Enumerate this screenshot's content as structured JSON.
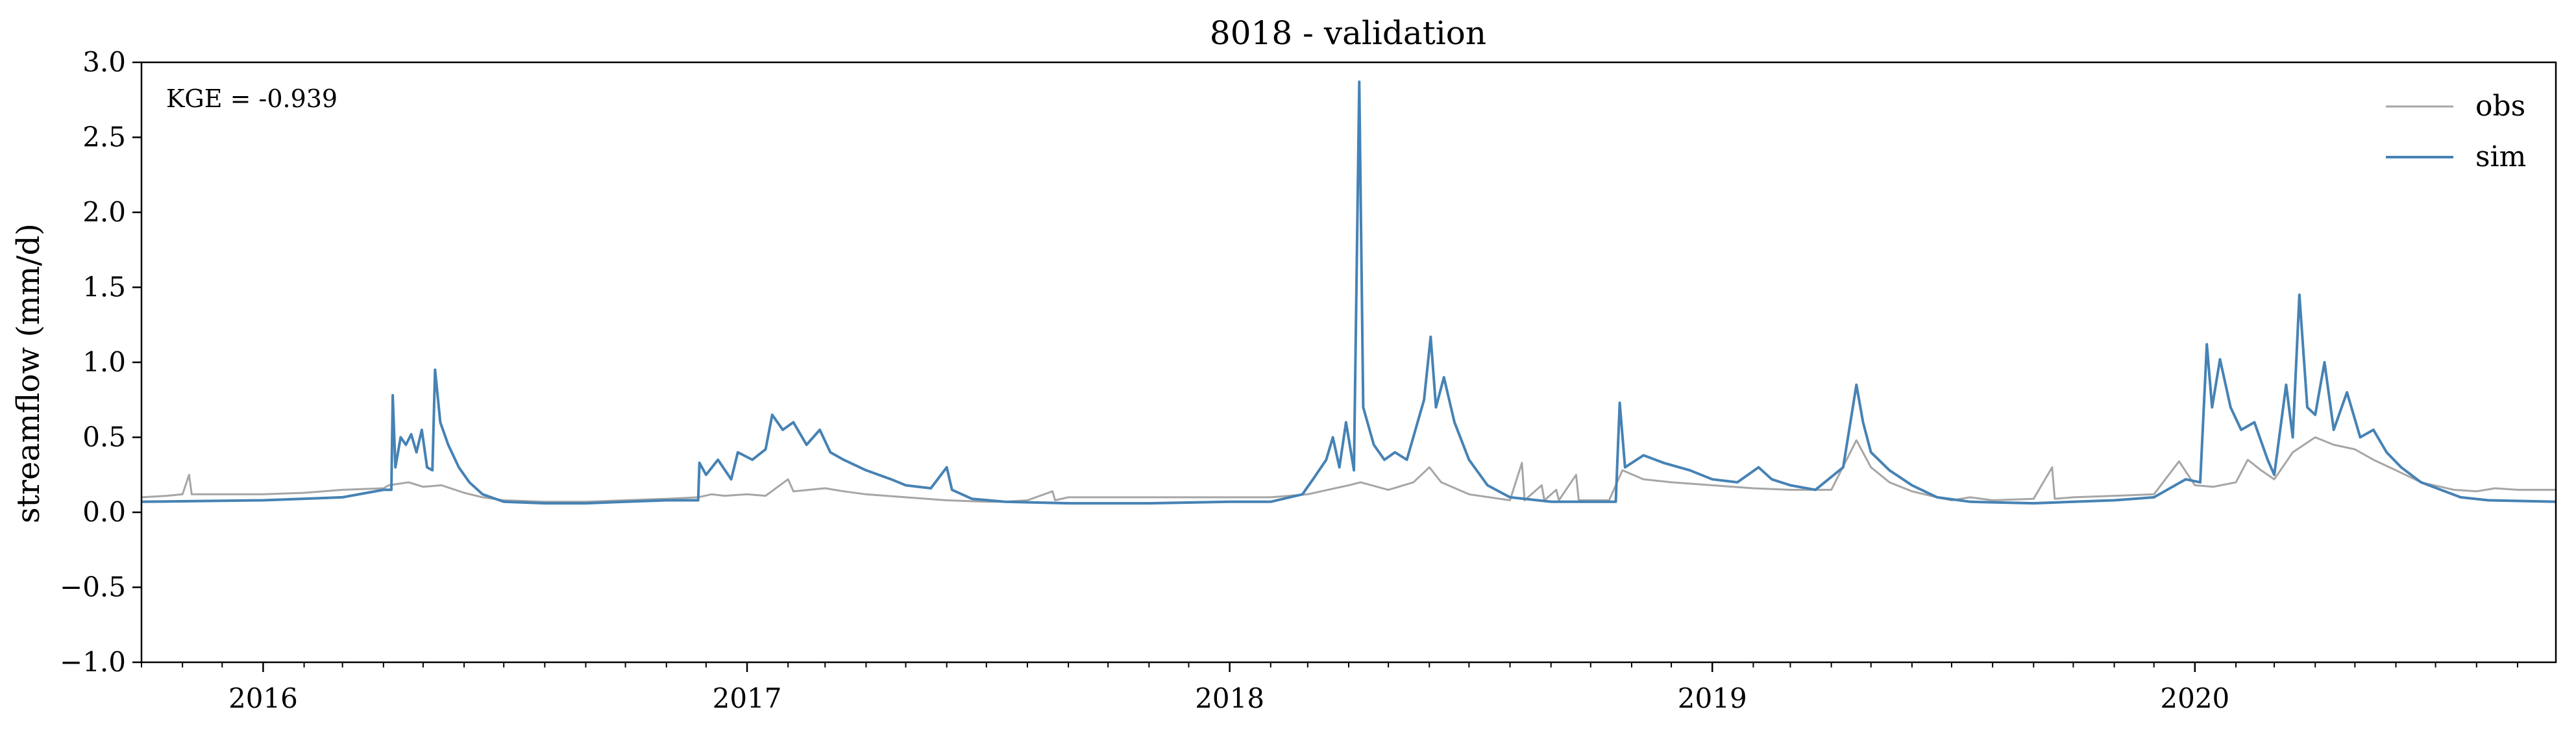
{
  "chart_data": {
    "type": "line",
    "title": "8018 - validation",
    "xlabel": "",
    "ylabel": "streamflow (mm/d)",
    "annotation": "KGE = -0.939",
    "xlim": [
      "2015-10-01",
      "2020-09-30"
    ],
    "ylim": [
      -1.0,
      3.0
    ],
    "yticks": [
      -1.0,
      -0.5,
      0.0,
      0.5,
      1.0,
      1.5,
      2.0,
      2.5,
      3.0
    ],
    "ytick_labels": [
      "−1.0",
      "−0.5",
      "0.0",
      "0.5",
      "1.0",
      "1.5",
      "2.0",
      "2.5",
      "3.0"
    ],
    "xticks": [
      "2016-01-01",
      "2017-01-01",
      "2018-01-01",
      "2019-01-01",
      "2020-01-01"
    ],
    "xtick_labels": [
      "2016",
      "2017",
      "2018",
      "2019",
      "2020"
    ],
    "grid": false,
    "legend_position": "top-right",
    "series": [
      {
        "name": "obs",
        "color": "#a6a6a6",
        "points": [
          [
            "2015-10-01",
            0.1
          ],
          [
            "2015-10-20",
            0.11
          ],
          [
            "2015-11-01",
            0.12
          ],
          [
            "2015-11-06",
            0.25
          ],
          [
            "2015-11-08",
            0.12
          ],
          [
            "2015-12-01",
            0.12
          ],
          [
            "2016-01-01",
            0.12
          ],
          [
            "2016-02-01",
            0.13
          ],
          [
            "2016-03-01",
            0.15
          ],
          [
            "2016-04-01",
            0.16
          ],
          [
            "2016-04-05",
            0.18
          ],
          [
            "2016-04-20",
            0.2
          ],
          [
            "2016-05-01",
            0.17
          ],
          [
            "2016-05-15",
            0.18
          ],
          [
            "2016-06-01",
            0.13
          ],
          [
            "2016-06-15",
            0.1
          ],
          [
            "2016-07-01",
            0.08
          ],
          [
            "2016-08-01",
            0.07
          ],
          [
            "2016-09-01",
            0.07
          ],
          [
            "2016-10-01",
            0.08
          ],
          [
            "2016-11-01",
            0.09
          ],
          [
            "2016-11-25",
            0.1
          ],
          [
            "2016-12-05",
            0.12
          ],
          [
            "2016-12-15",
            0.11
          ],
          [
            "2017-01-01",
            0.12
          ],
          [
            "2017-01-15",
            0.11
          ],
          [
            "2017-02-01",
            0.22
          ],
          [
            "2017-02-05",
            0.14
          ],
          [
            "2017-03-01",
            0.16
          ],
          [
            "2017-03-15",
            0.14
          ],
          [
            "2017-04-01",
            0.12
          ],
          [
            "2017-05-01",
            0.1
          ],
          [
            "2017-06-01",
            0.08
          ],
          [
            "2017-07-01",
            0.07
          ],
          [
            "2017-07-15",
            0.07
          ],
          [
            "2017-08-01",
            0.08
          ],
          [
            "2017-08-20",
            0.14
          ],
          [
            "2017-08-22",
            0.08
          ],
          [
            "2017-09-01",
            0.1
          ],
          [
            "2017-10-01",
            0.1
          ],
          [
            "2017-11-01",
            0.1
          ],
          [
            "2017-12-01",
            0.1
          ],
          [
            "2018-01-01",
            0.1
          ],
          [
            "2018-02-01",
            0.1
          ],
          [
            "2018-03-01",
            0.12
          ],
          [
            "2018-04-01",
            0.18
          ],
          [
            "2018-04-10",
            0.2
          ],
          [
            "2018-05-01",
            0.15
          ],
          [
            "2018-05-20",
            0.2
          ],
          [
            "2018-06-01",
            0.3
          ],
          [
            "2018-06-10",
            0.2
          ],
          [
            "2018-07-01",
            0.12
          ],
          [
            "2018-08-01",
            0.08
          ],
          [
            "2018-08-10",
            0.33
          ],
          [
            "2018-08-12",
            0.08
          ],
          [
            "2018-08-25",
            0.18
          ],
          [
            "2018-08-27",
            0.08
          ],
          [
            "2018-09-05",
            0.15
          ],
          [
            "2018-09-07",
            0.08
          ],
          [
            "2018-09-20",
            0.25
          ],
          [
            "2018-09-22",
            0.08
          ],
          [
            "2018-10-15",
            0.08
          ],
          [
            "2018-10-25",
            0.28
          ],
          [
            "2018-11-10",
            0.22
          ],
          [
            "2018-12-01",
            0.2
          ],
          [
            "2019-01-01",
            0.18
          ],
          [
            "2019-02-01",
            0.16
          ],
          [
            "2019-03-01",
            0.15
          ],
          [
            "2019-04-01",
            0.15
          ],
          [
            "2019-04-20",
            0.48
          ],
          [
            "2019-05-01",
            0.3
          ],
          [
            "2019-05-15",
            0.2
          ],
          [
            "2019-06-01",
            0.14
          ],
          [
            "2019-06-20",
            0.1
          ],
          [
            "2019-07-01",
            0.08
          ],
          [
            "2019-07-15",
            0.1
          ],
          [
            "2019-08-01",
            0.08
          ],
          [
            "2019-09-01",
            0.09
          ],
          [
            "2019-09-15",
            0.3
          ],
          [
            "2019-09-17",
            0.09
          ],
          [
            "2019-10-01",
            0.1
          ],
          [
            "2019-11-01",
            0.11
          ],
          [
            "2019-12-01",
            0.12
          ],
          [
            "2019-12-20",
            0.34
          ],
          [
            "2020-01-01",
            0.18
          ],
          [
            "2020-01-15",
            0.17
          ],
          [
            "2020-02-01",
            0.2
          ],
          [
            "2020-02-10",
            0.35
          ],
          [
            "2020-02-20",
            0.28
          ],
          [
            "2020-03-01",
            0.22
          ],
          [
            "2020-03-15",
            0.4
          ],
          [
            "2020-04-01",
            0.5
          ],
          [
            "2020-04-15",
            0.45
          ],
          [
            "2020-05-01",
            0.42
          ],
          [
            "2020-05-15",
            0.35
          ],
          [
            "2020-06-01",
            0.28
          ],
          [
            "2020-06-20",
            0.2
          ],
          [
            "2020-07-15",
            0.15
          ],
          [
            "2020-08-01",
            0.14
          ],
          [
            "2020-08-15",
            0.16
          ],
          [
            "2020-09-01",
            0.15
          ],
          [
            "2020-09-30",
            0.15
          ]
        ]
      },
      {
        "name": "sim",
        "color": "#4682b4",
        "points": [
          [
            "2015-10-01",
            0.07
          ],
          [
            "2016-01-01",
            0.08
          ],
          [
            "2016-03-01",
            0.1
          ],
          [
            "2016-04-01",
            0.15
          ],
          [
            "2016-04-07",
            0.15
          ],
          [
            "2016-04-08",
            0.78
          ],
          [
            "2016-04-10",
            0.3
          ],
          [
            "2016-04-14",
            0.5
          ],
          [
            "2016-04-18",
            0.45
          ],
          [
            "2016-04-22",
            0.52
          ],
          [
            "2016-04-26",
            0.4
          ],
          [
            "2016-04-30",
            0.55
          ],
          [
            "2016-05-04",
            0.3
          ],
          [
            "2016-05-08",
            0.28
          ],
          [
            "2016-05-10",
            0.95
          ],
          [
            "2016-05-14",
            0.6
          ],
          [
            "2016-05-20",
            0.45
          ],
          [
            "2016-05-28",
            0.3
          ],
          [
            "2016-06-05",
            0.2
          ],
          [
            "2016-06-15",
            0.12
          ],
          [
            "2016-07-01",
            0.07
          ],
          [
            "2016-08-01",
            0.06
          ],
          [
            "2016-09-01",
            0.06
          ],
          [
            "2016-10-01",
            0.07
          ],
          [
            "2016-11-01",
            0.08
          ],
          [
            "2016-11-25",
            0.08
          ],
          [
            "2016-11-26",
            0.33
          ],
          [
            "2016-12-01",
            0.25
          ],
          [
            "2016-12-10",
            0.35
          ],
          [
            "2016-12-20",
            0.22
          ],
          [
            "2016-12-25",
            0.4
          ],
          [
            "2017-01-05",
            0.35
          ],
          [
            "2017-01-15",
            0.42
          ],
          [
            "2017-01-20",
            0.65
          ],
          [
            "2017-01-28",
            0.55
          ],
          [
            "2017-02-05",
            0.6
          ],
          [
            "2017-02-15",
            0.45
          ],
          [
            "2017-02-25",
            0.55
          ],
          [
            "2017-03-05",
            0.4
          ],
          [
            "2017-03-15",
            0.35
          ],
          [
            "2017-04-01",
            0.28
          ],
          [
            "2017-04-20",
            0.22
          ],
          [
            "2017-05-01",
            0.18
          ],
          [
            "2017-05-20",
            0.16
          ],
          [
            "2017-06-01",
            0.3
          ],
          [
            "2017-06-05",
            0.15
          ],
          [
            "2017-06-20",
            0.09
          ],
          [
            "2017-07-15",
            0.07
          ],
          [
            "2017-09-01",
            0.06
          ],
          [
            "2017-11-01",
            0.06
          ],
          [
            "2018-01-01",
            0.07
          ],
          [
            "2018-02-01",
            0.07
          ],
          [
            "2018-02-25",
            0.12
          ],
          [
            "2018-03-05",
            0.22
          ],
          [
            "2018-03-15",
            0.35
          ],
          [
            "2018-03-20",
            0.5
          ],
          [
            "2018-03-25",
            0.3
          ],
          [
            "2018-03-30",
            0.6
          ],
          [
            "2018-04-05",
            0.28
          ],
          [
            "2018-04-09",
            2.87
          ],
          [
            "2018-04-12",
            0.7
          ],
          [
            "2018-04-20",
            0.45
          ],
          [
            "2018-04-28",
            0.35
          ],
          [
            "2018-05-06",
            0.4
          ],
          [
            "2018-05-15",
            0.35
          ],
          [
            "2018-05-28",
            0.75
          ],
          [
            "2018-06-02",
            1.17
          ],
          [
            "2018-06-06",
            0.7
          ],
          [
            "2018-06-12",
            0.9
          ],
          [
            "2018-06-20",
            0.6
          ],
          [
            "2018-07-01",
            0.35
          ],
          [
            "2018-07-15",
            0.18
          ],
          [
            "2018-08-01",
            0.1
          ],
          [
            "2018-09-01",
            0.07
          ],
          [
            "2018-10-10",
            0.07
          ],
          [
            "2018-10-20",
            0.07
          ],
          [
            "2018-10-23",
            0.73
          ],
          [
            "2018-10-27",
            0.3
          ],
          [
            "2018-11-10",
            0.38
          ],
          [
            "2018-11-25",
            0.33
          ],
          [
            "2018-12-15",
            0.28
          ],
          [
            "2019-01-01",
            0.22
          ],
          [
            "2019-01-20",
            0.2
          ],
          [
            "2019-02-05",
            0.3
          ],
          [
            "2019-02-15",
            0.22
          ],
          [
            "2019-03-01",
            0.18
          ],
          [
            "2019-03-20",
            0.15
          ],
          [
            "2019-04-10",
            0.3
          ],
          [
            "2019-04-20",
            0.85
          ],
          [
            "2019-04-25",
            0.6
          ],
          [
            "2019-05-01",
            0.4
          ],
          [
            "2019-05-15",
            0.28
          ],
          [
            "2019-06-01",
            0.18
          ],
          [
            "2019-06-20",
            0.1
          ],
          [
            "2019-07-15",
            0.07
          ],
          [
            "2019-09-01",
            0.06
          ],
          [
            "2019-11-01",
            0.08
          ],
          [
            "2019-12-01",
            0.1
          ],
          [
            "2019-12-25",
            0.22
          ],
          [
            "2020-01-05",
            0.2
          ],
          [
            "2020-01-10",
            1.12
          ],
          [
            "2020-01-14",
            0.7
          ],
          [
            "2020-01-20",
            1.02
          ],
          [
            "2020-01-28",
            0.7
          ],
          [
            "2020-02-05",
            0.55
          ],
          [
            "2020-02-15",
            0.6
          ],
          [
            "2020-02-25",
            0.35
          ],
          [
            "2020-03-01",
            0.25
          ],
          [
            "2020-03-10",
            0.85
          ],
          [
            "2020-03-15",
            0.5
          ],
          [
            "2020-03-20",
            1.45
          ],
          [
            "2020-03-26",
            0.7
          ],
          [
            "2020-04-01",
            0.65
          ],
          [
            "2020-04-08",
            1.0
          ],
          [
            "2020-04-15",
            0.55
          ],
          [
            "2020-04-25",
            0.8
          ],
          [
            "2020-05-05",
            0.5
          ],
          [
            "2020-05-15",
            0.55
          ],
          [
            "2020-05-25",
            0.4
          ],
          [
            "2020-06-05",
            0.3
          ],
          [
            "2020-06-20",
            0.2
          ],
          [
            "2020-07-05",
            0.15
          ],
          [
            "2020-07-20",
            0.1
          ],
          [
            "2020-08-10",
            0.08
          ],
          [
            "2020-09-30",
            0.07
          ]
        ]
      }
    ]
  }
}
